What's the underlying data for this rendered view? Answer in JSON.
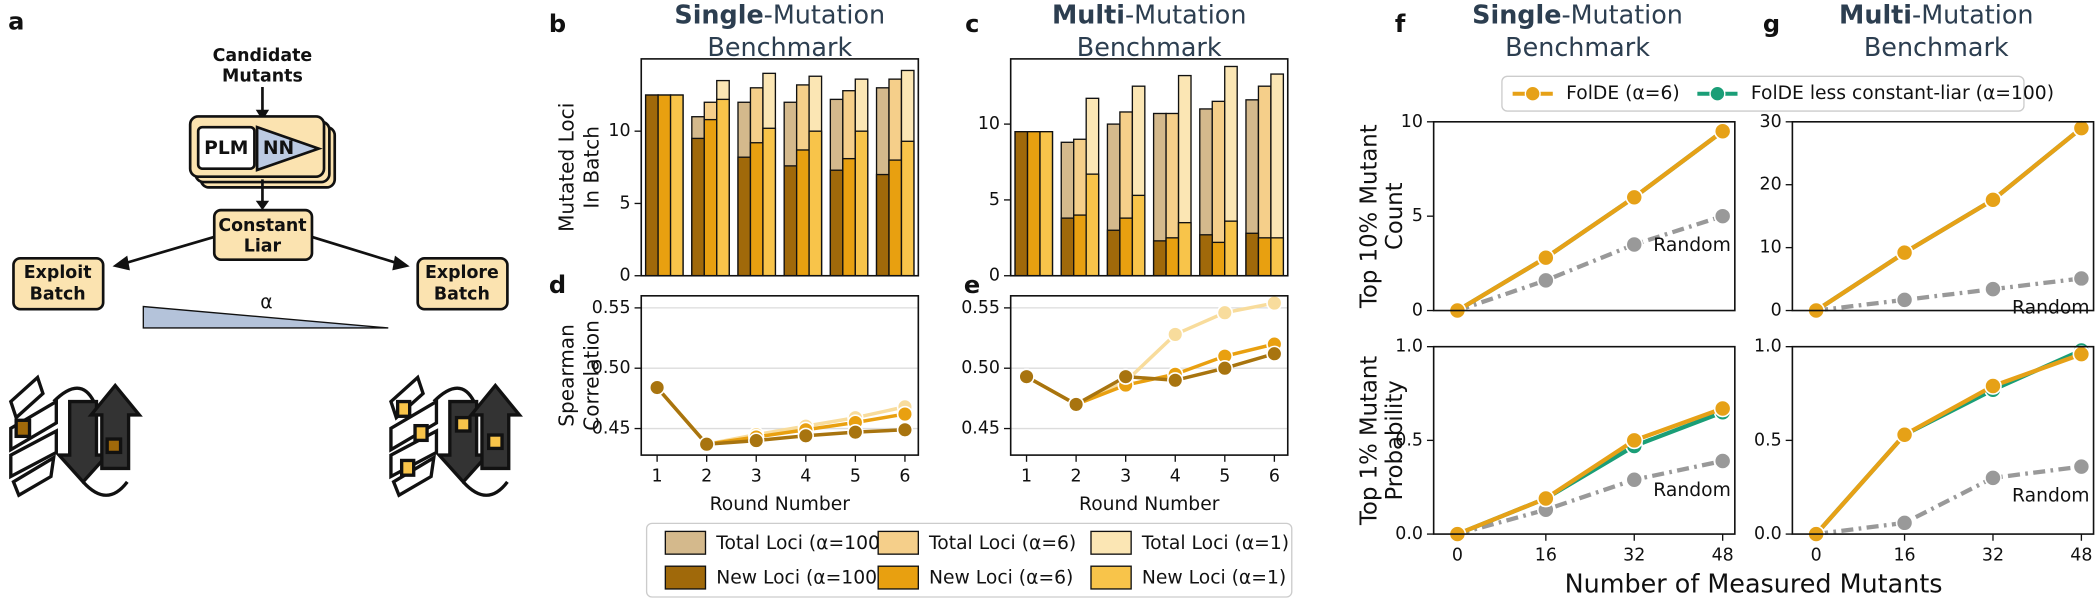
{
  "diagram": {
    "panel": "a",
    "candidate": [
      "Candidate",
      "Mutants"
    ],
    "model": [
      "PLM",
      "NN"
    ],
    "liar": [
      "Constant",
      "Liar"
    ],
    "exploit": [
      "Exploit",
      "Batch"
    ],
    "explore": [
      "Explore",
      "Batch"
    ],
    "alpha": "α"
  },
  "chart_data": [
    {
      "type": "bar",
      "panel": "b",
      "title": {
        "bold": "Single",
        "rest": "-Mutation",
        "line2": "Benchmark"
      },
      "ylabel": [
        "Mutated Loci",
        "In Batch"
      ],
      "ylim": [
        0,
        15
      ],
      "yticks": [
        0,
        5,
        10
      ],
      "series": [
        {
          "name": "Total Loci (α=100)",
          "color": "#d4b98c",
          "values": [
            12.5,
            11,
            12,
            12,
            12.2,
            13
          ]
        },
        {
          "name": "Total Loci (α=6)",
          "color": "#f5cf8a",
          "values": [
            12.5,
            12,
            13,
            13.2,
            12.8,
            13.6
          ]
        },
        {
          "name": "Total Loci (α=1)",
          "color": "#fbe6b4",
          "values": [
            12.5,
            13.5,
            14,
            13.8,
            13.6,
            14.2
          ]
        },
        {
          "name": "New Loci (α=100)",
          "color": "#a0690a",
          "values": [
            12.5,
            9.5,
            8.2,
            7.6,
            7.3,
            7
          ]
        },
        {
          "name": "New Loci (α=6)",
          "color": "#e8a010",
          "values": [
            12.5,
            10.8,
            9.2,
            8.7,
            8.1,
            8
          ]
        },
        {
          "name": "New Loci (α=1)",
          "color": "#f8c44a",
          "values": [
            12.5,
            12.2,
            10.2,
            10,
            10,
            9.3
          ]
        }
      ]
    },
    {
      "type": "bar",
      "panel": "c",
      "title": {
        "bold": "Multi",
        "rest": "-Mutation",
        "line2": "Benchmark"
      },
      "ylim": [
        0,
        14.3
      ],
      "yticks": [
        0,
        5,
        10
      ],
      "series": [
        {
          "color": "#d4b98c",
          "values": [
            9.5,
            8.8,
            10,
            10.7,
            11,
            11.6
          ]
        },
        {
          "color": "#f5cf8a",
          "values": [
            9.5,
            9,
            10.8,
            10.7,
            11.5,
            12.5
          ]
        },
        {
          "color": "#fbe6b4",
          "values": [
            9.5,
            11.7,
            12.5,
            13.2,
            13.8,
            13.3
          ]
        },
        {
          "color": "#a0690a",
          "values": [
            9.5,
            3.8,
            3,
            2.3,
            2.7,
            2.8
          ]
        },
        {
          "color": "#e8a010",
          "values": [
            9.5,
            4,
            3.8,
            2.5,
            2.2,
            2.5
          ]
        },
        {
          "color": "#f8c44a",
          "values": [
            9.5,
            6.7,
            5.3,
            3.5,
            3.6,
            2.5
          ]
        }
      ]
    },
    {
      "type": "line",
      "panel": "d",
      "ylabel": [
        "Spearman",
        "Correlation"
      ],
      "xlabel": "Round Number",
      "x": [
        1,
        2,
        3,
        4,
        5,
        6
      ],
      "xlim": [
        0.68,
        6.27
      ],
      "xticks": [
        1,
        2,
        3,
        4,
        5,
        6
      ],
      "ylim": [
        0.428,
        0.56
      ],
      "yticks": [
        0.45,
        {
          "value": 0.5,
          "label": "0.50"
        },
        0.55
      ],
      "grid": true,
      "series": [
        {
          "color": "#a8740f",
          "values": [
            0.484,
            0.437,
            0.44,
            0.444,
            0.447,
            0.449
          ]
        },
        {
          "color": "#e9a010",
          "values": [
            0.484,
            0.437,
            0.443,
            0.449,
            0.455,
            0.462
          ]
        },
        {
          "color": "#f8dc9c",
          "values": [
            0.484,
            0.437,
            0.445,
            0.452,
            0.459,
            0.468
          ]
        }
      ]
    },
    {
      "type": "line",
      "panel": "e",
      "xlabel": "Round Number",
      "x": [
        1,
        2,
        3,
        4,
        5,
        6
      ],
      "xlim": [
        0.68,
        6.27
      ],
      "xticks": [
        1,
        2,
        3,
        4,
        5,
        6
      ],
      "ylim": [
        0.428,
        0.56
      ],
      "yticks": [
        0.45,
        {
          "value": 0.5,
          "label": "0.50"
        },
        0.55
      ],
      "grid": true,
      "series": [
        {
          "color": "#a8740f",
          "values": [
            0.493,
            0.47,
            0.493,
            0.49,
            0.5,
            0.512
          ]
        },
        {
          "color": "#e9a010",
          "values": [
            0.493,
            0.47,
            0.486,
            0.495,
            0.51,
            0.52
          ]
        },
        {
          "color": "#f8dc9c",
          "values": [
            0.493,
            0.47,
            0.489,
            0.528,
            0.546,
            0.554
          ]
        }
      ]
    },
    {
      "type": "line",
      "panel": "f",
      "title": {
        "bold": "Single",
        "rest": "-Mutation",
        "line2": "Benchmark"
      },
      "ylabel": [
        "Top 10% Mutant",
        "Count"
      ],
      "x": [
        0,
        16,
        32,
        48
      ],
      "xlim": [
        -4.3,
        50.2
      ],
      "ylim": [
        0,
        10
      ],
      "yticks": [
        0,
        5,
        10
      ],
      "legend": "above",
      "annotation": "Random",
      "series": [
        {
          "name": "FolDE (α=6)",
          "color": "#e6a117",
          "values": [
            0,
            2.8,
            6,
            9.5
          ]
        },
        {
          "name": "FolDE less constant-liar (α=100)",
          "color": "#1a9e77",
          "values": [
            0,
            2.8,
            6,
            9.5
          ]
        },
        {
          "color": "#999999",
          "dash": true,
          "values": [
            0,
            1.6,
            3.5,
            5
          ]
        }
      ]
    },
    {
      "type": "line",
      "ylabel": [
        "Top 1% Mutant",
        "Probability"
      ],
      "xlabel": "Number of Measured Mutants",
      "x": [
        0,
        16,
        32,
        48
      ],
      "xlim": [
        -4.3,
        50.2
      ],
      "xticks": [
        0,
        16,
        32,
        48
      ],
      "ylim": [
        0,
        1
      ],
      "yticks": [
        {
          "value": 0,
          "label": "0.0"
        },
        {
          "value": 0.5,
          "label": "0.5"
        },
        {
          "value": 1,
          "label": "1.0"
        }
      ],
      "annotation": "Random",
      "series": [
        {
          "color": "#e6a117",
          "values": [
            0,
            0.19,
            0.5,
            0.67
          ]
        },
        {
          "color": "#1a9e77",
          "values": [
            0,
            0.19,
            0.47,
            0.65
          ]
        },
        {
          "color": "#999999",
          "dash": true,
          "values": [
            0,
            0.13,
            0.29,
            0.39
          ]
        }
      ]
    },
    {
      "type": "line",
      "panel": "g",
      "title": {
        "bold": "Multi",
        "rest": "-Mutation",
        "line2": "Benchmark"
      },
      "x": [
        0,
        16,
        32,
        48
      ],
      "xlim": [
        -4.3,
        50.2
      ],
      "ylim": [
        0,
        30
      ],
      "yticks": [
        0,
        10,
        20,
        30
      ],
      "annotation": "Random",
      "series": [
        {
          "color": "#e6a117",
          "values": [
            0,
            9.2,
            17.6,
            29
          ]
        },
        {
          "color": "#1a9e77",
          "values": [
            0,
            9.2,
            17.6,
            29
          ]
        },
        {
          "color": "#999999",
          "dash": true,
          "values": [
            0,
            1.7,
            3.4,
            5.1
          ]
        }
      ]
    },
    {
      "type": "line",
      "x": [
        0,
        16,
        32,
        48
      ],
      "xlim": [
        -4.3,
        50.2
      ],
      "xticks": [
        0,
        16,
        32,
        48
      ],
      "ylim": [
        0,
        1
      ],
      "yticks": [
        {
          "value": 0,
          "label": "0.0"
        },
        {
          "value": 0.5,
          "label": "0.5"
        },
        {
          "value": 1,
          "label": "1.0"
        }
      ],
      "annotation": "Random",
      "series": [
        {
          "color": "#e6a117",
          "values": [
            0,
            0.53,
            0.79,
            0.96
          ]
        },
        {
          "color": "#1a9e77",
          "values": [
            0,
            0.53,
            0.77,
            0.98
          ]
        },
        {
          "color": "#999999",
          "dash": true,
          "values": [
            0,
            0.06,
            0.3,
            0.36
          ]
        }
      ]
    }
  ]
}
